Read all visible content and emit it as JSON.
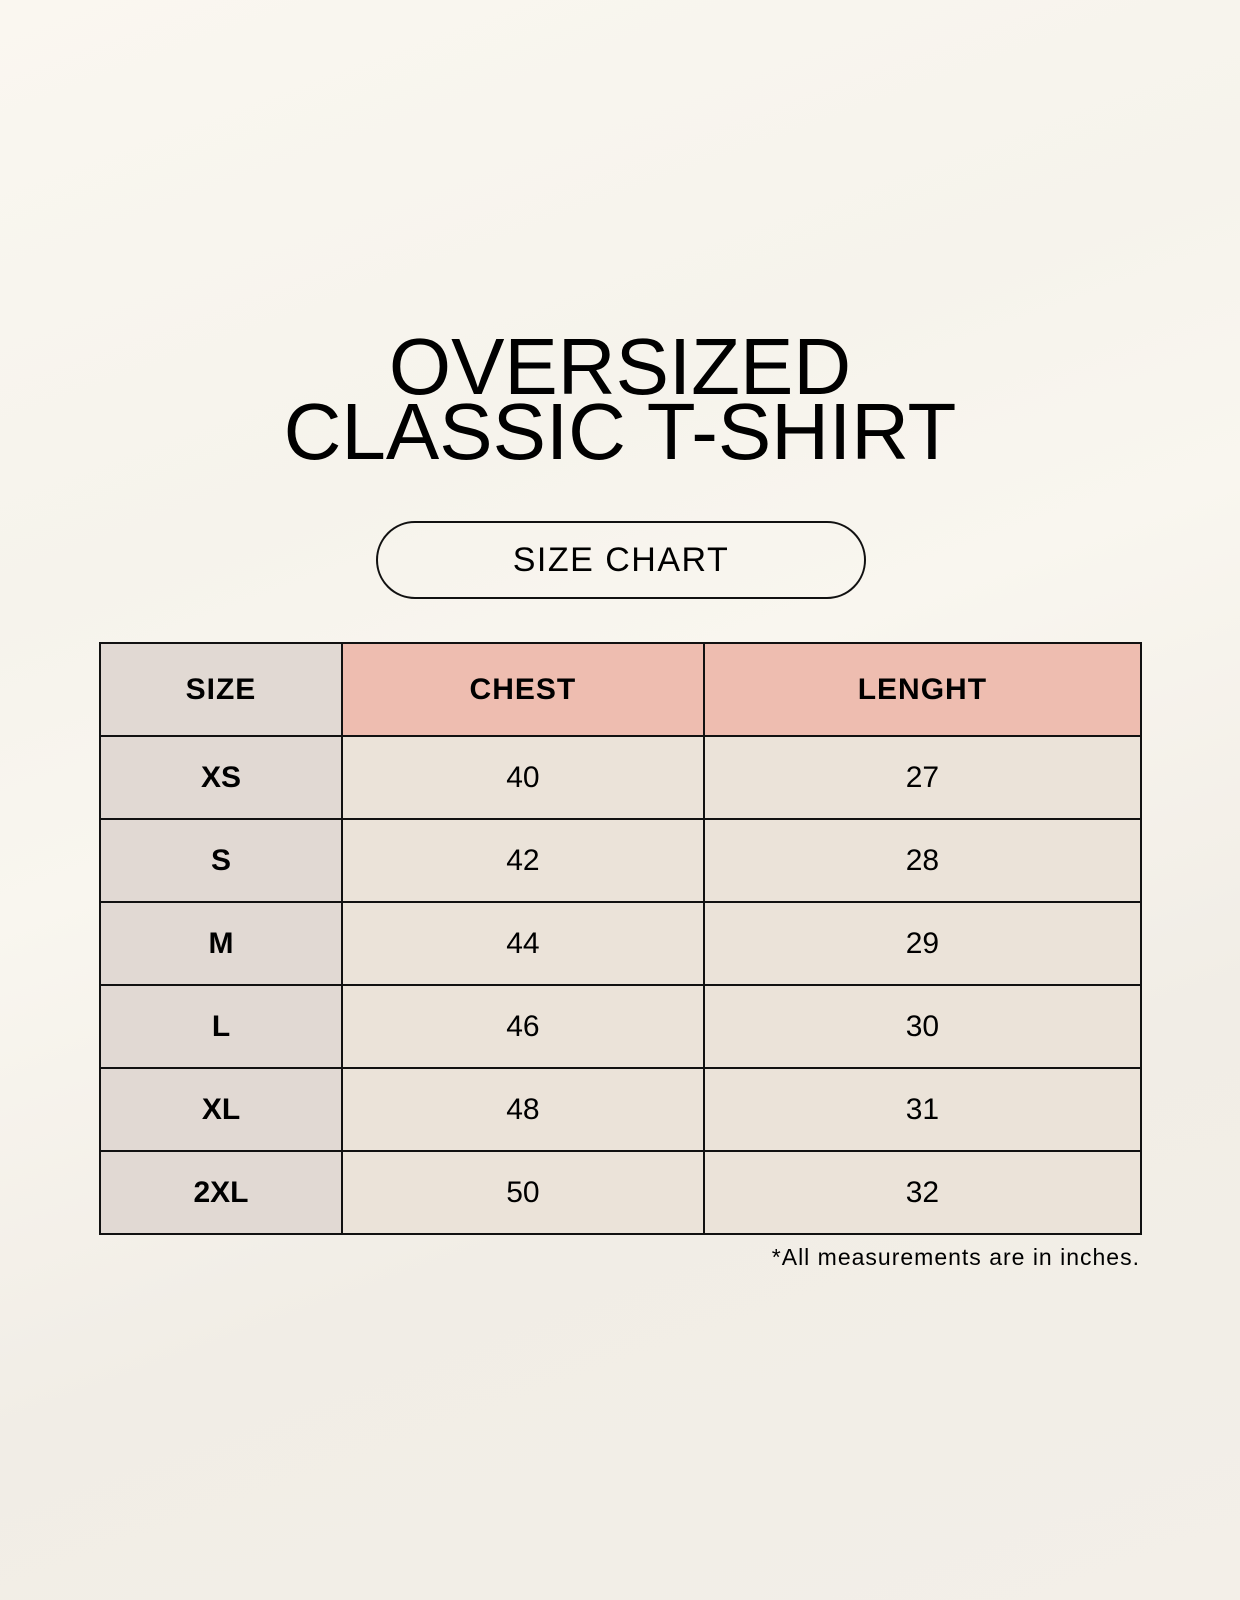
{
  "title": {
    "line1": "OVERSIZED",
    "line2": "CLASSIC T-SHIRT"
  },
  "badge": "SIZE CHART",
  "table": {
    "headers": [
      "SIZE",
      "CHEST",
      "LENGHT"
    ],
    "rows": [
      [
        "XS",
        "40",
        "27"
      ],
      [
        "S",
        "42",
        "28"
      ],
      [
        "M",
        "44",
        "29"
      ],
      [
        "L",
        "46",
        "30"
      ],
      [
        "XL",
        "48",
        "31"
      ],
      [
        "2XL",
        "50",
        "32"
      ]
    ]
  },
  "footnote": "*All measurements are in inches.",
  "colors": {
    "background": "#f8f5ef",
    "size_column": "#e1d9d3",
    "header_accent": "#eebdb0",
    "cell": "#ebe3d9"
  }
}
